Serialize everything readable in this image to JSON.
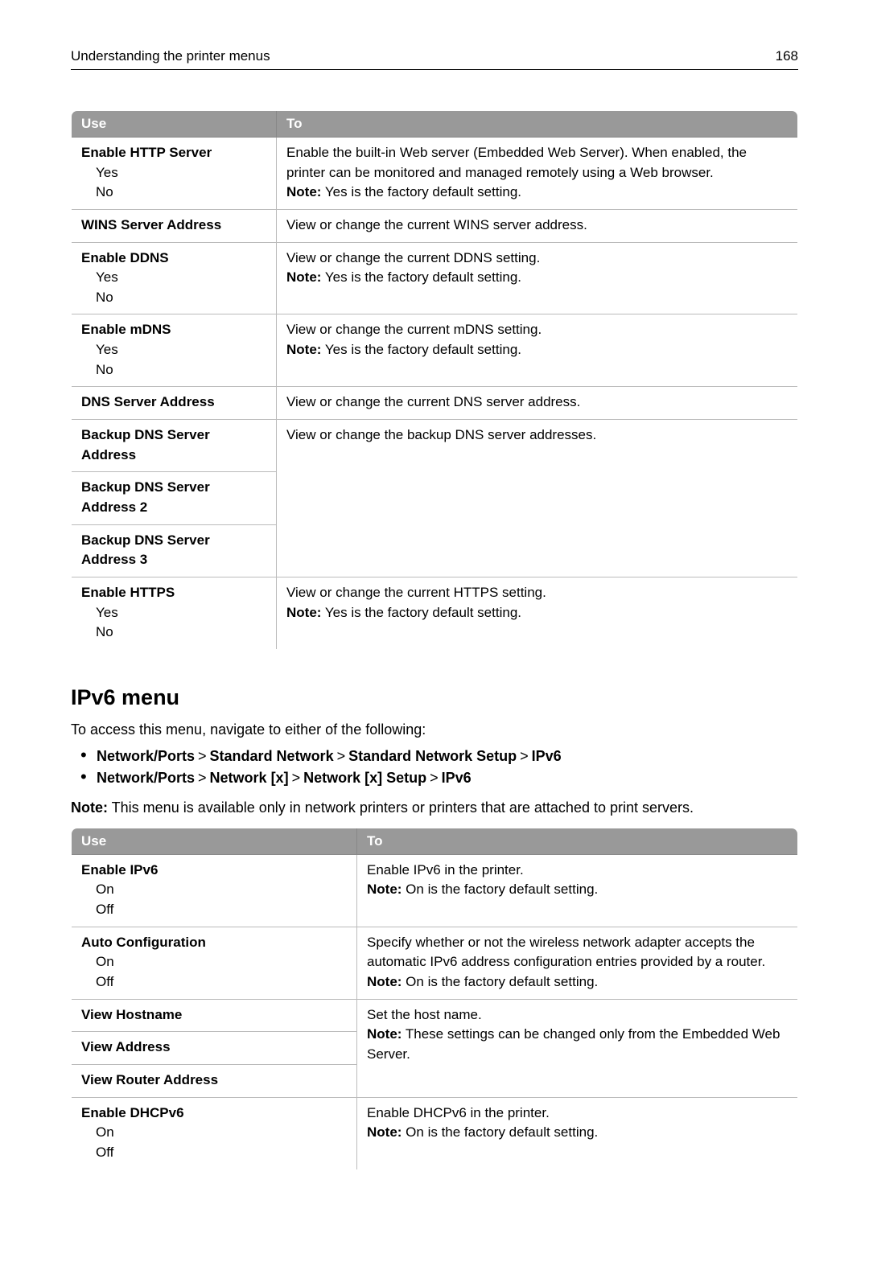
{
  "header": {
    "title": "Understanding the printer menus",
    "page_number": "168"
  },
  "table1": {
    "columns": {
      "use": "Use",
      "to": "To"
    },
    "rows": [
      {
        "use_title": "Enable HTTP Server",
        "use_opts": [
          "Yes",
          "No"
        ],
        "to_desc": "Enable the built-in Web server (Embedded Web Server). When enabled, the printer can be monitored and managed remotely using a Web browser.",
        "to_note": "Yes is the factory default setting."
      },
      {
        "use_title": "WINS Server Address",
        "to_desc": "View or change the current WINS server address."
      },
      {
        "use_title": "Enable DDNS",
        "use_opts": [
          "Yes",
          "No"
        ],
        "to_desc": "View or change the current DDNS setting.",
        "to_note": "Yes is the factory default setting."
      },
      {
        "use_title": "Enable mDNS",
        "use_opts": [
          "Yes",
          "No"
        ],
        "to_desc": "View or change the current mDNS setting.",
        "to_note": "Yes is the factory default setting."
      },
      {
        "use_title": "DNS Server Address",
        "to_desc": "View or change the current DNS server address."
      },
      {
        "group_use": [
          "Backup DNS Server Address",
          "Backup DNS Server Address 2",
          "Backup DNS Server Address 3"
        ],
        "to_desc": "View or change the backup DNS server addresses."
      },
      {
        "use_title": "Enable HTTPS",
        "use_opts": [
          "Yes",
          "No"
        ],
        "to_desc": "View or change the current HTTPS setting.",
        "to_note": "Yes is the factory default setting."
      }
    ]
  },
  "section": {
    "heading": "IPv6 menu",
    "intro": "To access this menu, navigate to either of the following:",
    "nav_paths": [
      [
        "Network/Ports",
        "Standard Network",
        "Standard Network Setup",
        "IPv6"
      ],
      [
        "Network/Ports",
        "Network [x]",
        "Network [x] Setup",
        "IPv6"
      ]
    ],
    "note_label": "Note:",
    "note_text": " This menu is available only in network printers or printers that are attached to print servers."
  },
  "table2": {
    "columns": {
      "use": "Use",
      "to": "To"
    },
    "rows": [
      {
        "use_title": "Enable IPv6",
        "use_opts": [
          "On",
          "Off"
        ],
        "to_desc": "Enable IPv6 in the printer.",
        "to_note": "On is the factory default setting."
      },
      {
        "use_title": "Auto Configuration",
        "use_opts": [
          "On",
          "Off"
        ],
        "to_desc": "Specify whether or not the wireless network adapter accepts the automatic IPv6 address configuration entries provided by a router.",
        "to_note": "On is the factory default setting."
      },
      {
        "group_use": [
          "View Hostname",
          "View Address",
          "View Router Address"
        ],
        "to_desc": "Set the host name.",
        "to_note": "These settings can be changed only from the Embedded Web Server."
      },
      {
        "use_title": "Enable DHCPv6",
        "use_opts": [
          "On",
          "Off"
        ],
        "to_desc": "Enable DHCPv6 in the printer.",
        "to_note": "On is the factory default setting."
      }
    ]
  },
  "labels": {
    "note": "Note:"
  }
}
